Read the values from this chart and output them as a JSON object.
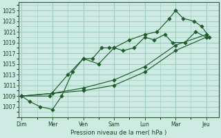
{
  "background_color": "#cdeae3",
  "grid_color": "#a0ccbf",
  "line_color": "#1e5c2a",
  "marker_color": "#1e5c2a",
  "xlabel": "Pression niveau de la mer( hPa )",
  "ylim": [
    1005.0,
    1026.5
  ],
  "xlim": [
    -0.1,
    6.4
  ],
  "ytick_min": 1007,
  "ytick_max": 1025,
  "ytick_step": 2,
  "x_labels": [
    "Dim",
    "Mer",
    "Ven",
    "Sam",
    "Lun",
    "Mar",
    "Jeu"
  ],
  "x_positions": [
    0,
    1,
    2,
    3,
    4,
    5,
    6
  ],
  "series": [
    {
      "x": [
        0,
        0.25,
        0.6,
        1.0,
        1.3,
        1.65,
        2.0,
        2.3,
        2.6,
        2.85,
        3.0,
        3.3,
        3.65,
        4.0,
        4.3,
        4.65,
        4.9,
        5.3,
        5.65,
        6.0
      ],
      "y": [
        1009,
        1008,
        1007,
        1006.5,
        1009,
        1013.5,
        1016,
        1016,
        1018,
        1018,
        1018,
        1017.5,
        1018,
        1020,
        1019.5,
        1020.5,
        1019,
        1019,
        1021,
        1020
      ]
    },
    {
      "x": [
        0,
        0.9,
        1.5,
        2.0,
        2.5,
        3.0,
        3.5,
        4.0,
        4.4,
        4.8,
        5.0,
        5.25,
        5.6,
        5.85,
        6.1
      ],
      "y": [
        1009,
        1009,
        1013,
        1016,
        1015,
        1018,
        1019.5,
        1020.5,
        1021,
        1023.5,
        1025,
        1023.5,
        1023,
        1022,
        1020
      ]
    },
    {
      "x": [
        0,
        1,
        2,
        3,
        4,
        5,
        6
      ],
      "y": [
        1009,
        1009.5,
        1010.0,
        1011.0,
        1013.5,
        1017.5,
        1020
      ]
    },
    {
      "x": [
        0,
        1,
        2,
        3,
        4,
        5,
        6
      ],
      "y": [
        1009,
        1009.5,
        1010.5,
        1012.0,
        1014.5,
        1018.5,
        1020.5
      ]
    }
  ]
}
